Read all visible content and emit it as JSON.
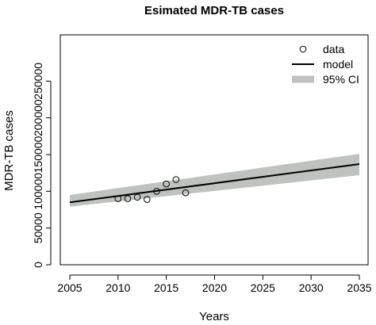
{
  "chart_data": {
    "type": "line",
    "title": "Esimated MDR-TB cases",
    "xlabel": "Years",
    "ylabel": "MDR-TB cases",
    "xlim": [
      2005,
      2035
    ],
    "ylim": [
      0,
      300000
    ],
    "x_ticks": [
      2005,
      2010,
      2015,
      2020,
      2025,
      2030,
      2035
    ],
    "x_tick_labels": [
      "2005",
      "2010",
      "2015",
      "2020",
      "2025",
      "2030",
      "2035"
    ],
    "y_ticks": [
      0,
      50000,
      100000,
      150000,
      200000,
      250000
    ],
    "y_tick_labels": [
      "0",
      "50000",
      "100000",
      "150000",
      "200000",
      "250000"
    ],
    "grid": false,
    "legend_position": "top-right",
    "series": [
      {
        "name": "data",
        "kind": "points",
        "marker": "open-circle",
        "x": [
          2010,
          2011,
          2012,
          2013,
          2014,
          2015,
          2016,
          2017
        ],
        "y": [
          90000,
          90000,
          92000,
          89000,
          100000,
          110000,
          116000,
          98000
        ]
      },
      {
        "name": "model",
        "kind": "line",
        "color": "#000000",
        "x": [
          2005,
          2035
        ],
        "y": [
          85000,
          137000
        ]
      },
      {
        "name": "95% CI",
        "kind": "band",
        "color": "#bfc3bf",
        "x": [
          2005,
          2035
        ],
        "lower": [
          79000,
          122000
        ],
        "upper": [
          95000,
          151000
        ]
      }
    ]
  }
}
